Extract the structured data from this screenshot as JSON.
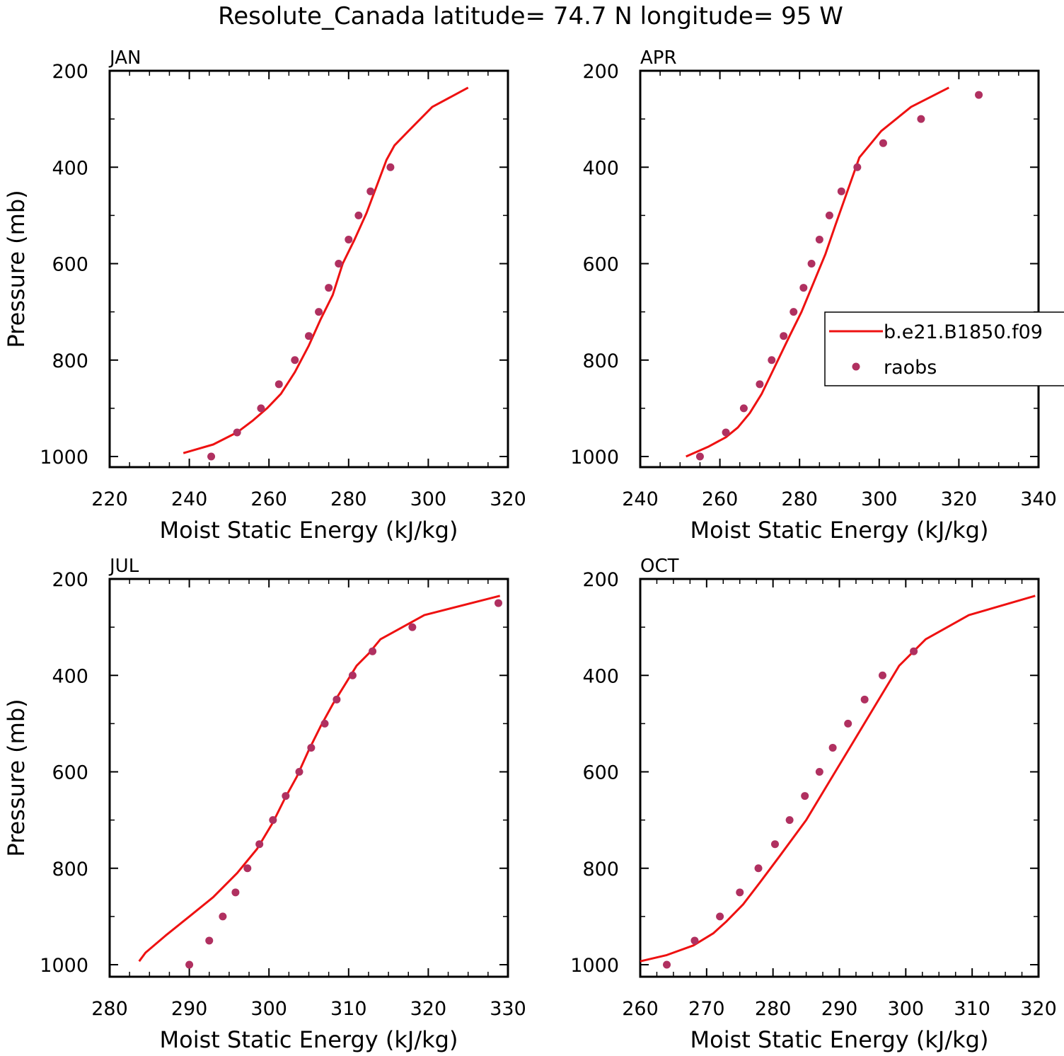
{
  "title": "Resolute_Canada  latitude= 74.7 N longitude= 95 W",
  "colors": {
    "model": "#ee1111",
    "obs": "#b03060",
    "axis": "#000000"
  },
  "legend": {
    "model_label": "b.e21.B1850.f09",
    "obs_label": "raobs",
    "position": "right of APR panel"
  },
  "chart_data": [
    {
      "type": "line",
      "panel_label": "JAN",
      "xlabel": "Moist Static Energy (kJ/kg)",
      "ylabel": "Pressure (mb)",
      "xlim": [
        220,
        320
      ],
      "ylim": [
        1000,
        200
      ],
      "xticks": [
        220,
        240,
        260,
        280,
        300,
        320
      ],
      "yticks": [
        200,
        400,
        600,
        800,
        1000
      ],
      "series": [
        {
          "name": "b.e21.B1850.f09",
          "kind": "line",
          "x": [
            238.5,
            246,
            252,
            256,
            259.5,
            263,
            266.5,
            270,
            273,
            276,
            278.5,
            281.5,
            284.5,
            287,
            289.5,
            291.5,
            295,
            301,
            310
          ],
          "y": [
            993,
            975,
            950,
            925,
            900,
            870,
            825,
            770,
            715,
            665,
            600,
            550,
            495,
            440,
            385,
            355,
            325,
            275,
            235
          ]
        },
        {
          "name": "raobs",
          "kind": "scatter",
          "x": [
            245.5,
            252,
            258,
            262.5,
            266.5,
            270,
            272.5,
            275,
            277.5,
            280,
            282.5,
            285.5,
            290.5
          ],
          "y": [
            1000,
            950,
            900,
            850,
            800,
            750,
            700,
            650,
            600,
            550,
            500,
            450,
            400
          ]
        }
      ]
    },
    {
      "type": "line",
      "panel_label": "APR",
      "xlabel": "Moist Static Energy (kJ/kg)",
      "ylabel": "",
      "xlim": [
        240,
        340
      ],
      "ylim": [
        1000,
        200
      ],
      "xticks": [
        240,
        260,
        280,
        300,
        320,
        340
      ],
      "yticks": [
        200,
        400,
        600,
        800,
        1000
      ],
      "series": [
        {
          "name": "b.e21.B1850.f09",
          "kind": "line",
          "x": [
            251.5,
            257,
            261.5,
            264.5,
            267.5,
            270.5,
            274,
            277.5,
            280.5,
            283.5,
            286.5,
            289,
            292,
            295,
            300.5,
            308,
            317.5
          ],
          "y": [
            1000,
            980,
            960,
            940,
            910,
            870,
            810,
            750,
            700,
            640,
            580,
            520,
            450,
            380,
            325,
            275,
            235
          ]
        },
        {
          "name": "raobs",
          "kind": "scatter",
          "x": [
            255,
            261.5,
            266,
            270,
            273,
            276,
            278.5,
            281,
            283,
            285,
            287.5,
            290.5,
            294.5,
            301,
            310.5,
            325
          ],
          "y": [
            1000,
            950,
            900,
            850,
            800,
            750,
            700,
            650,
            600,
            550,
            500,
            450,
            400,
            350,
            300,
            250
          ]
        }
      ]
    },
    {
      "type": "line",
      "panel_label": "JUL",
      "xlabel": "Moist Static Energy (kJ/kg)",
      "ylabel": "Pressure (mb)",
      "xlim": [
        280,
        330
      ],
      "ylim": [
        1000,
        200
      ],
      "xticks": [
        280,
        290,
        300,
        310,
        320,
        330
      ],
      "yticks": [
        200,
        400,
        600,
        800,
        1000
      ],
      "series": [
        {
          "name": "b.e21.B1850.f09",
          "kind": "line",
          "x": [
            283.7,
            284.5,
            287,
            290,
            293,
            296,
            298.5,
            300.5,
            302,
            303.5,
            305,
            306.5,
            308,
            309.5,
            311,
            312.5,
            314,
            319.5,
            329
          ],
          "y": [
            993,
            975,
            940,
            900,
            860,
            810,
            760,
            705,
            655,
            610,
            555,
            505,
            460,
            420,
            380,
            355,
            325,
            275,
            235
          ]
        },
        {
          "name": "raobs",
          "kind": "scatter",
          "x": [
            290,
            292.5,
            294.2,
            295.8,
            297.3,
            298.8,
            300.5,
            302.1,
            303.8,
            305.3,
            307,
            308.5,
            310.5,
            313,
            318,
            328.8
          ],
          "y": [
            1000,
            950,
            900,
            850,
            800,
            750,
            700,
            650,
            600,
            550,
            500,
            450,
            400,
            350,
            300,
            250
          ]
        }
      ]
    },
    {
      "type": "line",
      "panel_label": "OCT",
      "xlabel": "Moist Static Energy (kJ/kg)",
      "ylabel": "",
      "xlim": [
        260,
        320
      ],
      "ylim": [
        1000,
        200
      ],
      "xticks": [
        260,
        270,
        280,
        290,
        300,
        310,
        320
      ],
      "yticks": [
        200,
        400,
        600,
        800,
        1000
      ],
      "series": [
        {
          "name": "b.e21.B1850.f09",
          "kind": "line",
          "x": [
            260,
            264,
            268,
            271,
            273,
            275.5,
            278,
            281,
            285,
            288.5,
            292,
            295.5,
            299,
            303,
            309.5,
            319.5
          ],
          "y": [
            993,
            980,
            960,
            935,
            910,
            875,
            830,
            775,
            700,
            620,
            540,
            460,
            380,
            325,
            275,
            235
          ]
        },
        {
          "name": "raobs",
          "kind": "scatter",
          "x": [
            264,
            268.2,
            272,
            275,
            277.8,
            280.3,
            282.5,
            284.8,
            287,
            289,
            291.3,
            293.8,
            296.5,
            301.2
          ],
          "y": [
            1000,
            950,
            900,
            850,
            800,
            750,
            700,
            650,
            600,
            550,
            500,
            450,
            400,
            350
          ]
        }
      ]
    }
  ]
}
